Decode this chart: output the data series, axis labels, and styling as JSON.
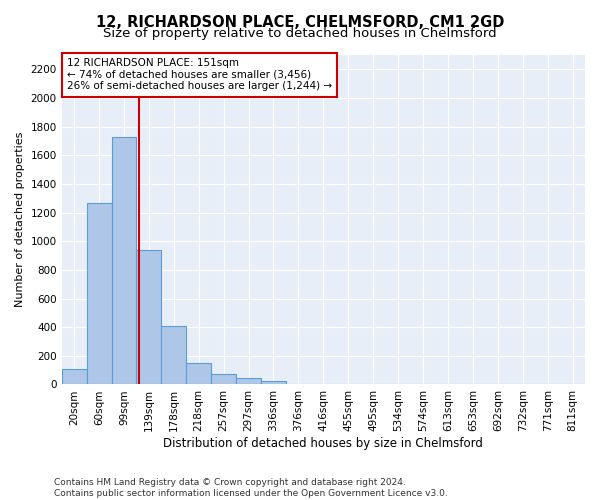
{
  "title": "12, RICHARDSON PLACE, CHELMSFORD, CM1 2GD",
  "subtitle": "Size of property relative to detached houses in Chelmsford",
  "xlabel": "Distribution of detached houses by size in Chelmsford",
  "ylabel": "Number of detached properties",
  "bar_labels": [
    "20sqm",
    "60sqm",
    "99sqm",
    "139sqm",
    "178sqm",
    "218sqm",
    "257sqm",
    "297sqm",
    "336sqm",
    "376sqm",
    "416sqm",
    "455sqm",
    "495sqm",
    "534sqm",
    "574sqm",
    "613sqm",
    "653sqm",
    "692sqm",
    "732sqm",
    "771sqm",
    "811sqm"
  ],
  "bar_values": [
    110,
    1265,
    1730,
    940,
    410,
    150,
    75,
    42,
    25,
    0,
    0,
    0,
    0,
    0,
    0,
    0,
    0,
    0,
    0,
    0,
    0
  ],
  "bar_color": "#aec6e8",
  "bar_edgecolor": "#5a9fd4",
  "vline_color": "#cc0000",
  "annotation_lines": [
    "12 RICHARDSON PLACE: 151sqm",
    "← 74% of detached houses are smaller (3,456)",
    "26% of semi-detached houses are larger (1,244) →"
  ],
  "annotation_box_color": "#cc0000",
  "ylim": [
    0,
    2300
  ],
  "yticks": [
    0,
    200,
    400,
    600,
    800,
    1000,
    1200,
    1400,
    1600,
    1800,
    2000,
    2200
  ],
  "bg_color": "#e8eef8",
  "footer": "Contains HM Land Registry data © Crown copyright and database right 2024.\nContains public sector information licensed under the Open Government Licence v3.0.",
  "title_fontsize": 10.5,
  "subtitle_fontsize": 9.5,
  "xlabel_fontsize": 8.5,
  "ylabel_fontsize": 8,
  "tick_fontsize": 7.5,
  "annotation_fontsize": 7.5,
  "footer_fontsize": 6.5
}
